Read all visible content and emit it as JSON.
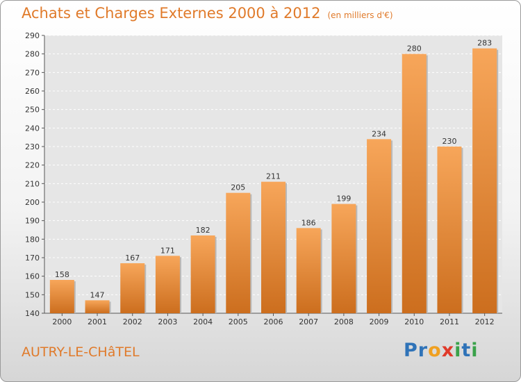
{
  "chart_data": {
    "type": "bar",
    "title": "Achats et Charges Externes 2000 à 2012",
    "subtitle": "(en milliers d'€)",
    "categories": [
      "2000",
      "2001",
      "2002",
      "2003",
      "2004",
      "2005",
      "2006",
      "2007",
      "2008",
      "2009",
      "2010",
      "2011",
      "2012"
    ],
    "values": [
      158,
      147,
      167,
      171,
      182,
      205,
      211,
      186,
      199,
      234,
      280,
      230,
      283
    ],
    "ylim": [
      140,
      290
    ],
    "yticks": [
      140,
      150,
      160,
      170,
      180,
      190,
      200,
      210,
      220,
      230,
      240,
      250,
      260,
      270,
      280,
      290
    ],
    "grid": true,
    "bar_color_top": "#f7a65a",
    "bar_color_bottom": "#cc6e1e"
  },
  "place_name": "AUTRY-LE-CHâTEL",
  "logo": {
    "letters": [
      "P",
      "r",
      "o",
      "x",
      "i",
      "t",
      "i"
    ],
    "colors": [
      "#2f73b8",
      "#2f73b8",
      "#f0a020",
      "#e03a2a",
      "#3aa24a",
      "#2f73b8",
      "#3aa24a"
    ]
  },
  "colors": {
    "accent": "#e07a2a"
  }
}
